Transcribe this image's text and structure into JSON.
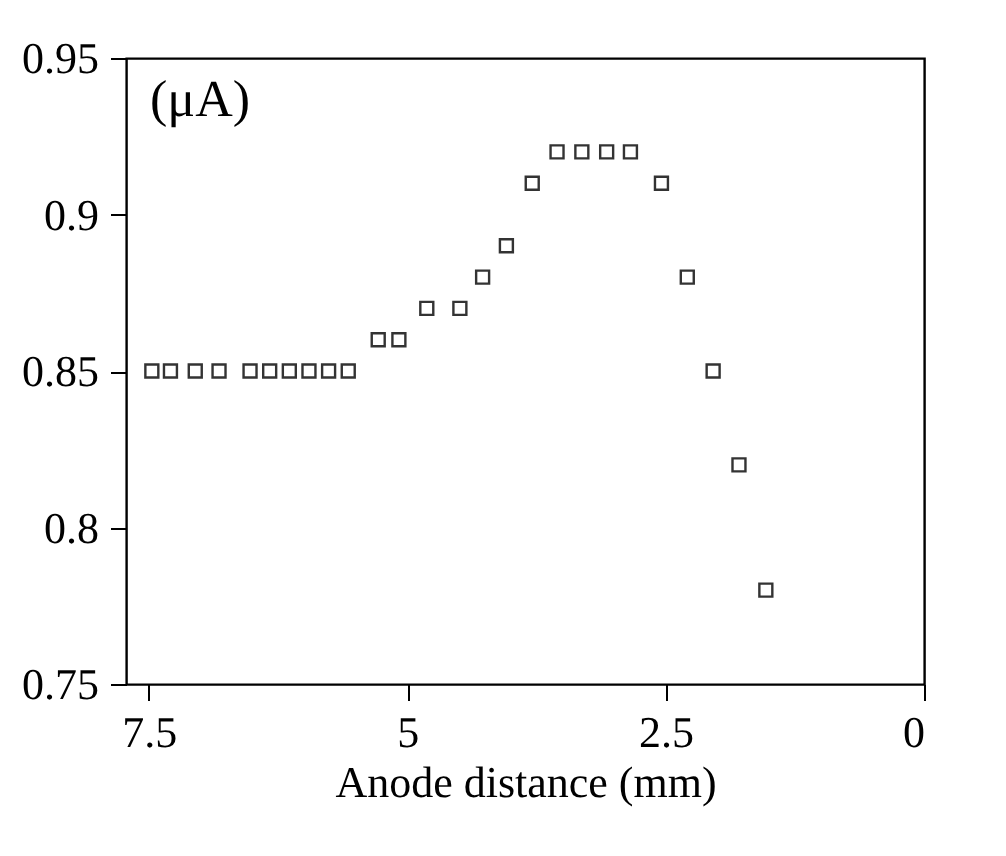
{
  "chart_data": {
    "type": "scatter",
    "xlabel": "Anode distance (mm)",
    "annotations": [
      "(μA)"
    ],
    "x": [
      7.47,
      7.29,
      7.05,
      6.82,
      6.52,
      6.33,
      6.14,
      5.95,
      5.76,
      5.57,
      5.28,
      5.08,
      4.81,
      4.49,
      4.27,
      4.04,
      3.79,
      3.55,
      3.31,
      3.07,
      2.84,
      2.54,
      2.29,
      2.04,
      1.79,
      1.53
    ],
    "series": [
      {
        "color": "#333333",
        "values": [
          0.85,
          0.85,
          0.85,
          0.85,
          0.85,
          0.85,
          0.85,
          0.85,
          0.85,
          0.85,
          0.86,
          0.86,
          0.87,
          0.87,
          0.88,
          0.89,
          0.91,
          0.92,
          0.92,
          0.92,
          0.92,
          0.91,
          0.88,
          0.85,
          0.82,
          0.78
        ]
      }
    ],
    "xlim": [
      7.72,
      0
    ],
    "xticks": [
      7.5,
      5,
      2.5,
      0
    ],
    "ylim": [
      0.75,
      0.95
    ],
    "yticks": [
      0.75,
      0.8,
      0.85,
      0.9,
      0.95
    ],
    "marker": "square",
    "grid": false
  }
}
